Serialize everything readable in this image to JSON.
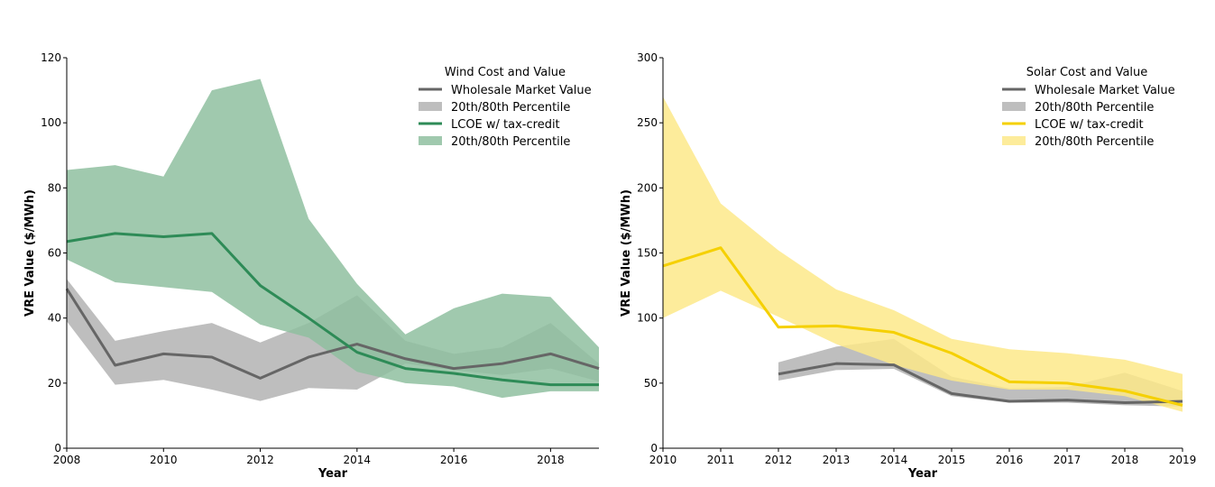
{
  "chart_data": [
    {
      "type": "line",
      "id": "wind",
      "xlabel": "Year",
      "ylabel": "VRE Value ($/MWh)",
      "xlim": [
        2008,
        2019
      ],
      "ylim": [
        0,
        120
      ],
      "xticks": [
        2008,
        2010,
        2012,
        2014,
        2016,
        2018
      ],
      "yticks": [
        0,
        20,
        40,
        60,
        80,
        100,
        120
      ],
      "grid": false,
      "legend_title": "Wind Cost and Value",
      "legend_position": "top-right",
      "colors": {
        "value": "#6e6e6e",
        "value_band": "#b3b3b3",
        "lcoe": "#2e8b57",
        "lcoe_band": "#8fbfa0"
      },
      "x": [
        2008,
        2009,
        2010,
        2011,
        2012,
        2013,
        2014,
        2015,
        2016,
        2017,
        2018,
        2019
      ],
      "series": [
        {
          "name": "Wholesale Market Value",
          "kind": "line",
          "color": "#666666",
          "values": [
            49,
            25.5,
            29,
            28,
            21.5,
            28,
            32,
            27.5,
            24.5,
            26,
            29,
            24.5
          ]
        },
        {
          "name": "20th/80th Percentile",
          "kind": "band",
          "color": "#b3b3b3",
          "lower": [
            39,
            19.5,
            21,
            18,
            14.5,
            18.5,
            18,
            26,
            24,
            22.5,
            24.5,
            20.5
          ],
          "upper": [
            52,
            33,
            36,
            38.5,
            32.5,
            38.5,
            47,
            33,
            29,
            31,
            38.5,
            26
          ]
        },
        {
          "name": "LCOE w/ tax-credit",
          "kind": "line",
          "color": "#2e8b57",
          "values": [
            63.5,
            66,
            65,
            66,
            50,
            40,
            29.5,
            24.5,
            23,
            21,
            19.5,
            19.5
          ]
        },
        {
          "name": "20th/80th Percentile",
          "kind": "band",
          "color": "#8fbfa0",
          "lower": [
            58,
            51,
            49.5,
            48,
            38,
            34,
            23.5,
            20,
            19,
            15.5,
            17.5,
            17.5
          ],
          "upper": [
            85.5,
            87,
            83.5,
            110,
            113.5,
            70.5,
            50.5,
            35,
            43,
            47.5,
            46.5,
            31
          ]
        }
      ]
    },
    {
      "type": "line",
      "id": "solar",
      "xlabel": "Year",
      "ylabel": "VRE Value ($/MWh)",
      "xlim": [
        2010,
        2019
      ],
      "ylim": [
        0,
        300
      ],
      "xticks": [
        2010,
        2011,
        2012,
        2013,
        2014,
        2015,
        2016,
        2017,
        2018,
        2019
      ],
      "yticks": [
        0,
        50,
        100,
        150,
        200,
        250,
        300
      ],
      "grid": false,
      "legend_title": "Solar Cost and Value",
      "legend_position": "top-right",
      "colors": {
        "value": "#6e6e6e",
        "value_band": "#b3b3b3",
        "lcoe": "#f5d000",
        "lcoe_band": "#fde98a"
      },
      "series": [
        {
          "name": "Wholesale Market Value",
          "kind": "line",
          "color": "#666666",
          "x": [
            2012,
            2013,
            2014,
            2015,
            2016,
            2017,
            2018,
            2019
          ],
          "values": [
            57,
            65,
            64,
            42,
            36,
            37,
            35,
            36
          ]
        },
        {
          "name": "20th/80th Percentile",
          "kind": "band",
          "color": "#b3b3b3",
          "x": [
            2012,
            2013,
            2014,
            2015,
            2016,
            2017,
            2018,
            2019
          ],
          "lower": [
            52,
            60,
            61,
            40,
            35,
            35,
            33,
            32
          ],
          "upper": [
            66,
            78,
            84,
            55,
            46,
            47,
            58,
            44
          ]
        },
        {
          "name": "LCOE w/ tax-credit",
          "kind": "line",
          "color": "#f5d000",
          "x": [
            2010,
            2011,
            2012,
            2013,
            2014,
            2015,
            2016,
            2017,
            2018,
            2019
          ],
          "values": [
            140,
            154,
            93,
            94,
            89,
            73,
            51,
            50,
            44,
            33
          ]
        },
        {
          "name": "20th/80th Percentile",
          "kind": "band",
          "color": "#fde98a",
          "x": [
            2010,
            2011,
            2012,
            2013,
            2014,
            2015,
            2016,
            2017,
            2018,
            2019
          ],
          "lower": [
            100,
            121,
            101,
            80,
            64,
            52,
            45,
            45,
            40,
            28
          ],
          "upper": [
            270,
            188,
            152,
            122,
            106,
            84,
            76,
            73,
            68,
            57
          ]
        }
      ]
    }
  ]
}
